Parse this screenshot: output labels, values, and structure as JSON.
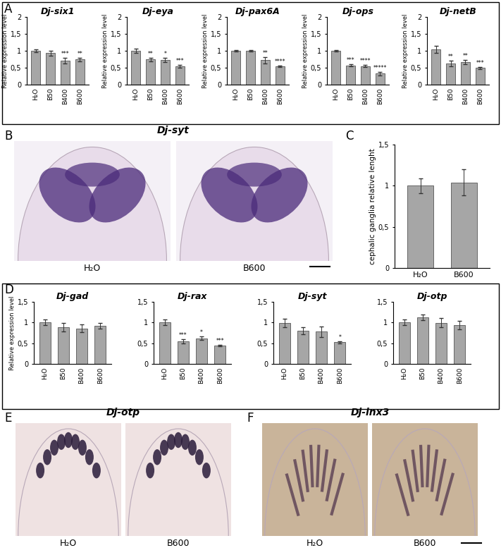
{
  "chart_data": [
    {
      "type": "bar",
      "panel": "A",
      "title": "Dj-six1",
      "y_label": "Relative expression level",
      "categories": [
        "H₂O",
        "B50",
        "B400",
        "B600"
      ],
      "values": [
        1.0,
        0.93,
        0.71,
        0.74
      ],
      "errors": [
        0.05,
        0.07,
        0.08,
        0.05
      ],
      "significance": [
        null,
        null,
        "***",
        "**"
      ],
      "color": "#a6a6a6",
      "ylim": [
        0,
        2
      ],
      "yticks": [
        0,
        {
          "value": 0.5,
          "label": "0,5"
        },
        1,
        {
          "value": 1.5,
          "label": "1,5"
        },
        2
      ]
    },
    {
      "type": "bar",
      "panel": "A",
      "title": "Dj-eya",
      "y_label": "Relative expression level",
      "categories": [
        "H₂O",
        "B50",
        "B400",
        "B600"
      ],
      "values": [
        1.0,
        0.74,
        0.73,
        0.55
      ],
      "errors": [
        0.07,
        0.06,
        0.07,
        0.04
      ],
      "significance": [
        null,
        "**",
        "*",
        "***"
      ],
      "color": "#a6a6a6",
      "ylim": [
        0,
        2
      ],
      "yticks": [
        0,
        {
          "value": 0.5,
          "label": "0,5"
        },
        1,
        {
          "value": 1.5,
          "label": "1,5"
        },
        2
      ]
    },
    {
      "type": "bar",
      "panel": "A",
      "title": "Dj-pax6A",
      "y_label": "Relative expression level",
      "categories": [
        "H₂O",
        "B50",
        "B400",
        "B600"
      ],
      "values": [
        1.0,
        1.0,
        0.72,
        0.55
      ],
      "errors": [
        0.03,
        0.03,
        0.1,
        0.02
      ],
      "significance": [
        null,
        null,
        "**",
        "****"
      ],
      "color": "#a6a6a6",
      "ylim": [
        0,
        2
      ],
      "yticks": [
        0,
        {
          "value": 0.5,
          "label": "0,5"
        },
        1,
        {
          "value": 1.5,
          "label": "1,5"
        },
        2
      ]
    },
    {
      "type": "bar",
      "panel": "A",
      "title": "Dj-ops",
      "y_label": "Relative expression level",
      "categories": [
        "H₂O",
        "B50",
        "B400",
        "B600"
      ],
      "values": [
        1.0,
        0.57,
        0.55,
        0.33
      ],
      "errors": [
        0.03,
        0.03,
        0.03,
        0.05
      ],
      "significance": [
        null,
        "***",
        "****",
        "*****"
      ],
      "color": "#a6a6a6",
      "ylim": [
        0,
        2
      ],
      "yticks": [
        0,
        {
          "value": 0.5,
          "label": "0,5"
        },
        1,
        {
          "value": 1.5,
          "label": "1,5"
        },
        2
      ]
    },
    {
      "type": "bar",
      "panel": "A",
      "title": "Dj-netB",
      "y_label": "Relative expression level",
      "categories": [
        "H₂O",
        "B50",
        "B400",
        "B600"
      ],
      "values": [
        1.04,
        0.63,
        0.66,
        0.49
      ],
      "errors": [
        0.1,
        0.08,
        0.06,
        0.04
      ],
      "significance": [
        null,
        "**",
        "**",
        "***"
      ],
      "color": "#a6a6a6",
      "ylim": [
        0,
        2
      ],
      "yticks": [
        0,
        {
          "value": 0.5,
          "label": "0,5"
        },
        1,
        {
          "value": 1.5,
          "label": "1,5"
        },
        2
      ]
    },
    {
      "type": "bar",
      "panel": "C",
      "y_label": "cephalic ganglia relative lenght",
      "categories": [
        "H₂O",
        "B600"
      ],
      "values": [
        1.0,
        1.04
      ],
      "errors": [
        0.09,
        0.16
      ],
      "color": "#a6a6a6",
      "ylim": [
        0,
        1.5
      ],
      "yticks": [
        0,
        {
          "value": 0.5,
          "label": "0,5"
        },
        1,
        {
          "value": 1.5,
          "label": "1,5"
        }
      ]
    },
    {
      "type": "bar",
      "panel": "D",
      "title": "Dj-gad",
      "y_label": "Relative expression level",
      "categories": [
        "H₂O",
        "B50",
        "B400",
        "B600"
      ],
      "values": [
        1.0,
        0.89,
        0.86,
        0.92
      ],
      "errors": [
        0.07,
        0.1,
        0.09,
        0.07
      ],
      "color": "#a6a6a6",
      "ylim": [
        0,
        1.5
      ],
      "yticks": [
        0,
        {
          "value": 0.5,
          "label": "0,5"
        },
        1,
        {
          "value": 1.5,
          "label": "1,5"
        }
      ]
    },
    {
      "type": "bar",
      "panel": "D",
      "title": "Dj-rax",
      "categories": [
        "H₂O",
        "B50",
        "B400",
        "B600"
      ],
      "values": [
        1.0,
        0.55,
        0.62,
        0.44
      ],
      "errors": [
        0.07,
        0.05,
        0.04,
        0.02
      ],
      "significance": [
        null,
        "***",
        "*",
        "***"
      ],
      "color": "#a6a6a6",
      "ylim": [
        0,
        1.5
      ],
      "yticks": [
        0,
        {
          "value": 0.5,
          "label": "0,5"
        },
        1,
        {
          "value": 1.5,
          "label": "1,5"
        }
      ]
    },
    {
      "type": "bar",
      "panel": "D",
      "title": "Dj-syt",
      "categories": [
        "H₂O",
        "B50",
        "B400",
        "B600"
      ],
      "values": [
        0.99,
        0.8,
        0.78,
        0.52
      ],
      "errors": [
        0.1,
        0.09,
        0.13,
        0.03
      ],
      "significance": [
        null,
        null,
        null,
        "*"
      ],
      "color": "#a6a6a6",
      "ylim": [
        0,
        1.5
      ],
      "yticks": [
        0,
        {
          "value": 0.5,
          "label": "0,5"
        },
        1,
        {
          "value": 1.5,
          "label": "1,5"
        }
      ]
    },
    {
      "type": "bar",
      "panel": "D",
      "title": "Dj-otp",
      "categories": [
        "H₂O",
        "B50",
        "B400",
        "B600"
      ],
      "values": [
        1.01,
        1.13,
        0.99,
        0.94
      ],
      "errors": [
        0.07,
        0.07,
        0.11,
        0.1
      ],
      "color": "#a6a6a6",
      "ylim": [
        0,
        1.5
      ],
      "yticks": [
        0,
        {
          "value": 0.5,
          "label": "0,5"
        },
        1,
        {
          "value": 1.5,
          "label": "1,5"
        }
      ]
    }
  ],
  "images": [
    {
      "panel": "B",
      "title": "Dj-syt",
      "captions": [
        "H₂O",
        "B600"
      ]
    },
    {
      "panel": "E",
      "title": "Dj-otp",
      "captions": [
        "H₂O",
        "B600"
      ]
    },
    {
      "panel": "F",
      "title": "Dj-inx3",
      "captions": [
        "H₂O",
        "B600"
      ]
    }
  ]
}
